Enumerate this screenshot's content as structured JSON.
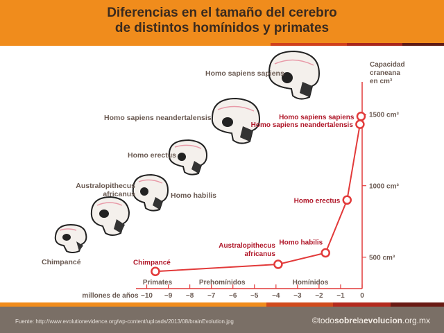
{
  "header": {
    "title_line1": "Diferencias en el tamaño del cerebro",
    "title_line2": "de distintos homínidos y primates"
  },
  "skulls": [
    {
      "label": "Chimpancé",
      "icon": "chimpanzee-skull-icon"
    },
    {
      "label_line1": "Australopithecus",
      "label_line2": "africanus",
      "icon": "australopithecus-skull-icon"
    },
    {
      "label": "Homo habilis",
      "icon": "homo-habilis-skull-icon"
    },
    {
      "label": "Homo erectus",
      "icon": "homo-erectus-skull-icon"
    },
    {
      "label": "Homo sapiens neandertalensis",
      "icon": "neanderthal-skull-icon"
    },
    {
      "label": "Homo sapiens sapiens",
      "icon": "homo-sapiens-skull-icon"
    }
  ],
  "chart_data": {
    "type": "line",
    "xlabel": "millones de años",
    "ylabel_lines": [
      "Capacidad",
      "craneana",
      "en cm³"
    ],
    "xlim": [
      -10.5,
      0
    ],
    "ylim": [
      280,
      1620
    ],
    "x_ticks": [
      -10,
      -9,
      -8,
      -7,
      -6,
      -5,
      -4,
      -3,
      -2,
      -1,
      0
    ],
    "x_tick_labels": [
      "−10",
      "−9",
      "−8",
      "−7",
      "−6",
      "−5",
      "−4",
      "−3",
      "−2",
      "−1",
      "0"
    ],
    "y_ticks": [
      500,
      1000,
      1500
    ],
    "y_tick_labels": [
      "500 cm³",
      "1000 cm³",
      "1500 cm³"
    ],
    "periods": [
      {
        "label": "Primates",
        "center": -9.5
      },
      {
        "label": "Prehomínidos",
        "center": -6.5
      },
      {
        "label": "Homínidos",
        "center": -2.4
      }
    ],
    "points": [
      {
        "x": -9.6,
        "y": 400,
        "label_lines": [
          "Chimpancé"
        ],
        "label_pos": "above"
      },
      {
        "x": -3.9,
        "y": 450,
        "label_lines": [
          "Australopithecus",
          "africanus"
        ],
        "label_pos": "above-left"
      },
      {
        "x": -1.7,
        "y": 530,
        "label_lines": [
          "Homo habilis"
        ],
        "label_pos": "above-left"
      },
      {
        "x": -0.7,
        "y": 900,
        "label_lines": [
          "Homo erectus"
        ],
        "label_pos": "left"
      },
      {
        "x": -0.1,
        "y": 1430,
        "label_lines": [
          "Homo sapiens neandertalensis"
        ],
        "label_pos": "left"
      },
      {
        "x": -0.05,
        "y": 1485,
        "label_lines": [
          "Homo sapiens sapiens"
        ],
        "label_pos": "left"
      }
    ],
    "colors": {
      "line": "#e23a3a",
      "axis": "#e23a3a",
      "label": "#b0182a",
      "tick_text": "#6a5a52"
    }
  },
  "footer": {
    "source": "Fuente: http://www.evolutionevidence.org/wp-content/uploads/2013/08/brainEvolution.jpg",
    "brand_prefix": "©todo",
    "brand_bold1": "sobre",
    "brand_mid": "la",
    "brand_bold2": "evolucion",
    "brand_suffix": ".org.mx"
  }
}
